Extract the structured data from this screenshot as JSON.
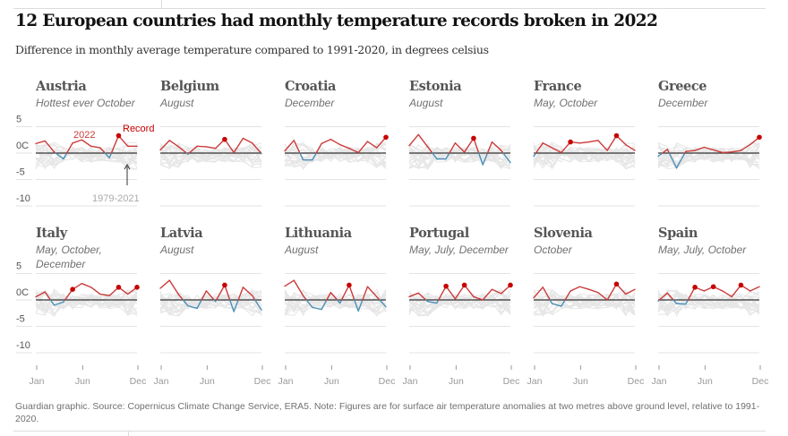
{
  "title": "12 European countries had monthly temperature records broken in 2022",
  "subtitle": "Difference in monthly average temperature compared to 1991-2020, in degrees celsius",
  "footer": "Guardian graphic. Source: Copernicus Climate Change Service, ERA5. Note: Figures are for surface air temperature anomalies at two metres above ground level, relative to 1991-2020.",
  "annotations": {
    "year_label": "2022",
    "record_label": "Record",
    "history_label": "1979-2021"
  },
  "colors": {
    "above": "#cc3a3a",
    "below": "#4a8fb8",
    "record": "#c70000",
    "history": "#e6e6e6",
    "zero": "#333333"
  },
  "chart_data": {
    "type": "line",
    "small_multiples": true,
    "x": [
      "Jan",
      "Feb",
      "Mar",
      "Apr",
      "May",
      "Jun",
      "Jul",
      "Aug",
      "Sep",
      "Oct",
      "Nov",
      "Dec"
    ],
    "x_tick_labels": [
      "Jan",
      "Jun",
      "Dec"
    ],
    "y_tick_labels": [
      "5",
      "0C",
      "-5",
      "-10"
    ],
    "ylim": [
      -10,
      5
    ],
    "grid": true,
    "panels": [
      {
        "name": "Austria",
        "note": "Hottest ever October",
        "values": [
          1.8,
          2.3,
          0.2,
          -1.1,
          1.9,
          2.5,
          1.3,
          1.0,
          -0.9,
          3.3,
          1.3,
          1.3
        ],
        "records": [
          "Oct"
        ]
      },
      {
        "name": "Belgium",
        "note": "August",
        "values": [
          0.6,
          2.4,
          1.2,
          -0.2,
          1.3,
          1.2,
          0.9,
          2.6,
          0.1,
          2.8,
          1.9,
          -0.1
        ],
        "records": [
          "Aug"
        ]
      },
      {
        "name": "Croatia",
        "note": "December",
        "values": [
          0.4,
          2.4,
          -1.3,
          -1.3,
          1.8,
          2.6,
          1.6,
          0.9,
          0.1,
          2.2,
          1.0,
          3.0
        ],
        "records": [
          "Dec"
        ]
      },
      {
        "name": "Estonia",
        "note": "August",
        "values": [
          1.4,
          3.5,
          1.2,
          -1.1,
          -1.1,
          1.9,
          0.2,
          2.8,
          -2.2,
          2.1,
          0.5,
          -1.8
        ],
        "records": [
          "Aug"
        ]
      },
      {
        "name": "France",
        "note": "May, October",
        "values": [
          -0.6,
          1.9,
          1.0,
          0.1,
          2.1,
          1.9,
          2.1,
          2.4,
          0.5,
          3.3,
          1.6,
          0.5
        ],
        "records": [
          "May",
          "Oct"
        ]
      },
      {
        "name": "Greece",
        "note": "December",
        "values": [
          -0.6,
          0.7,
          -2.8,
          0.3,
          0.5,
          1.1,
          0.6,
          0.1,
          0.2,
          0.5,
          1.6,
          3.0
        ],
        "records": [
          "Dec"
        ]
      },
      {
        "name": "Italy",
        "note": "May, October, December",
        "values": [
          0.6,
          1.5,
          -1.0,
          -0.4,
          2.0,
          3.1,
          2.4,
          1.1,
          0.8,
          2.4,
          1.1,
          2.4
        ],
        "records": [
          "May",
          "Oct",
          "Dec"
        ]
      },
      {
        "name": "Latvia",
        "note": "August",
        "values": [
          2.2,
          3.7,
          1.0,
          -1.1,
          -1.6,
          1.7,
          -0.3,
          2.8,
          -2.2,
          2.4,
          0.8,
          -1.9
        ],
        "records": [
          "Aug"
        ]
      },
      {
        "name": "Lithuania",
        "note": "August",
        "values": [
          2.6,
          3.7,
          0.8,
          -1.4,
          -1.8,
          1.4,
          -0.6,
          2.8,
          -2.1,
          2.5,
          0.6,
          -1.3
        ],
        "records": [
          "Aug"
        ]
      },
      {
        "name": "Portugal",
        "note": "May, July, December",
        "values": [
          0.6,
          1.3,
          -0.3,
          -0.6,
          2.6,
          0.2,
          2.8,
          0.6,
          0.0,
          2.0,
          1.2,
          2.8
        ],
        "records": [
          "May",
          "Jul",
          "Dec"
        ]
      },
      {
        "name": "Slovenia",
        "note": "October",
        "values": [
          0.4,
          2.4,
          -0.7,
          -1.2,
          1.7,
          2.5,
          2.0,
          1.4,
          0.0,
          3.0,
          1.1,
          2.0
        ],
        "records": [
          "Oct"
        ]
      },
      {
        "name": "Spain",
        "note": "May, July, October",
        "values": [
          -0.2,
          1.3,
          -0.7,
          -0.8,
          2.4,
          1.7,
          2.5,
          1.7,
          0.6,
          2.8,
          1.7,
          2.5
        ],
        "records": [
          "May",
          "Jul",
          "Oct"
        ]
      }
    ]
  }
}
